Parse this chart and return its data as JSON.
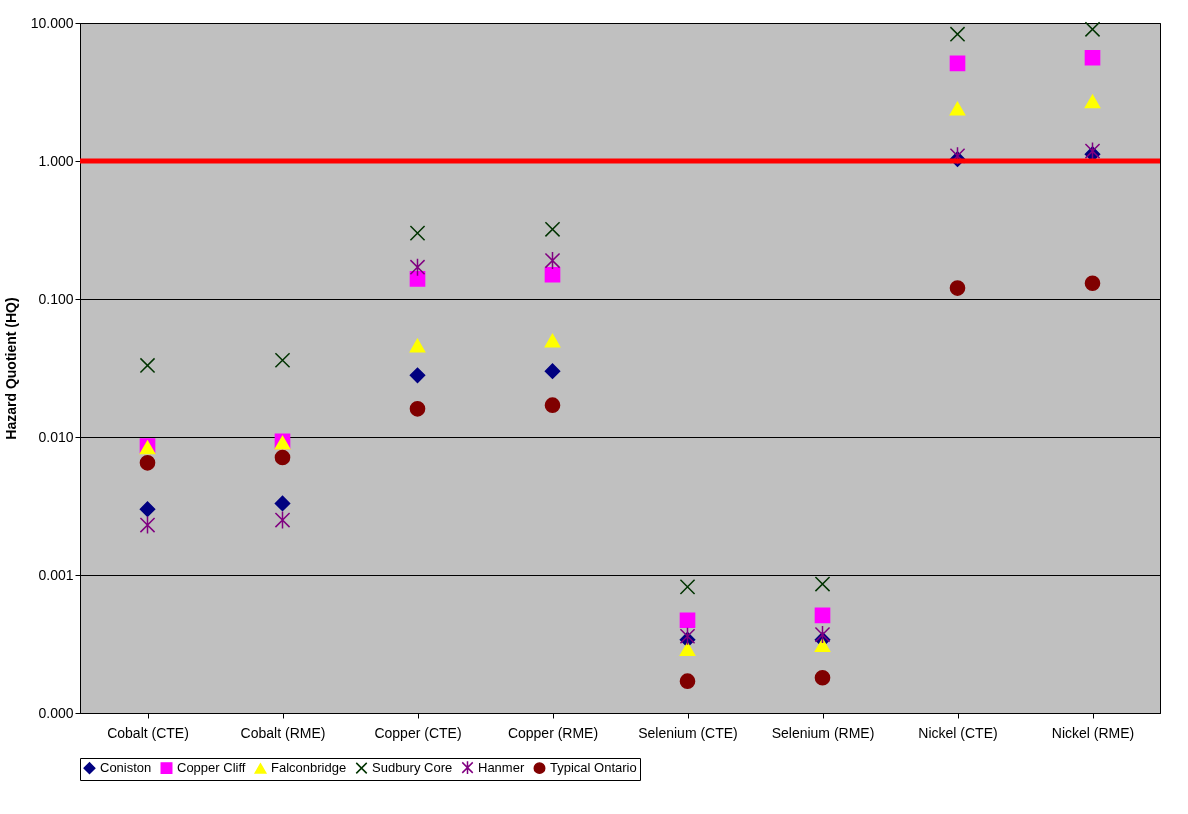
{
  "chart_data": {
    "type": "scatter",
    "ylabel": "Hazard Quotient (HQ)",
    "categories": [
      "Cobalt (CTE)",
      "Cobalt (RME)",
      "Copper (CTE)",
      "Copper (RME)",
      "Selenium (CTE)",
      "Selenium (RME)",
      "Nickel (CTE)",
      "Nickel (RME)"
    ],
    "series": [
      {
        "name": "Coniston",
        "color": "#000080",
        "marker": "diamond",
        "values": [
          0.003,
          0.0033,
          0.028,
          0.03,
          0.00034,
          0.00034,
          1.03,
          1.12
        ]
      },
      {
        "name": "Copper Cliff",
        "color": "#ff00ff",
        "marker": "square",
        "values": [
          0.0086,
          0.0093,
          0.14,
          0.15,
          0.00047,
          0.00051,
          5.1,
          5.6
        ]
      },
      {
        "name": "Falconbridge",
        "color": "#ffff00",
        "marker": "triangle",
        "values": [
          0.0084,
          0.0091,
          0.046,
          0.05,
          0.00029,
          0.00031,
          2.4,
          2.7
        ]
      },
      {
        "name": "Sudbury Core",
        "color": "#003300",
        "marker": "cross",
        "values": [
          0.033,
          0.036,
          0.3,
          0.32,
          0.00082,
          0.00086,
          8.3,
          9.0
        ]
      },
      {
        "name": "Hanmer",
        "color": "#800080",
        "values": [
          0.0023,
          0.0025,
          0.17,
          0.19,
          0.00036,
          0.00037,
          1.09,
          1.18
        ]
      },
      {
        "name": "Typical Ontario",
        "color": "#800000",
        "marker": "circle",
        "values": [
          0.0065,
          0.0071,
          0.016,
          0.017,
          0.00017,
          0.00018,
          0.12,
          0.13
        ]
      }
    ],
    "log": "y",
    "ylim": [
      0.0001,
      10
    ],
    "yticks": [
      {
        "value": 0.0001,
        "label": "0.000"
      },
      {
        "value": 0.001,
        "label": "0.001"
      },
      {
        "value": 0.01,
        "label": "0.010"
      },
      {
        "value": 0.1,
        "label": "0.100"
      },
      {
        "value": 1,
        "label": "1.000"
      },
      {
        "value": 10,
        "label": "10.000"
      }
    ],
    "ref_lines": [
      {
        "axis": "y",
        "value": 1,
        "color": "#ff0000"
      }
    ],
    "grid": "y",
    "legend": "bottom"
  }
}
